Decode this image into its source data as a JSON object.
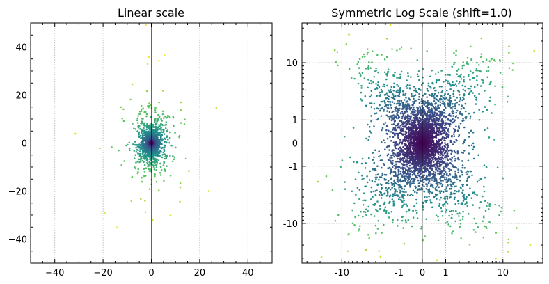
{
  "chart_data": [
    {
      "type": "scatter",
      "title": "Linear scale",
      "xlim": [
        -50,
        50
      ],
      "ylim": [
        -50,
        50
      ],
      "x_ticks": [
        -40,
        -20,
        0,
        20,
        40
      ],
      "y_ticks": [
        -40,
        -20,
        0,
        20,
        40
      ],
      "x_tick_labels": [
        "−40",
        "−20",
        "0",
        "20",
        "40"
      ],
      "y_tick_labels": [
        "−40",
        "−20",
        "0",
        "20",
        "40"
      ],
      "grid": true,
      "colormap": "viridis",
      "points_description_count": 5000
    },
    {
      "type": "scatter",
      "title": "Symmetric Log Scale (shift=1.0)",
      "xlim": [
        -35,
        35
      ],
      "ylim": [
        -35,
        35
      ],
      "x_ticks": [
        -10,
        -1,
        0,
        1,
        10
      ],
      "y_ticks": [
        -10,
        -1,
        0,
        1,
        10
      ],
      "x_tick_labels": [
        "-10",
        "-1",
        "0",
        "1",
        "10"
      ],
      "y_tick_labels": [
        "-10",
        "-1",
        "0",
        "1",
        "10"
      ],
      "grid": true,
      "colormap": "viridis",
      "scale": "symlog",
      "shift": 1.0
    }
  ],
  "colors": {
    "center": "#440154",
    "mid": "#21918c",
    "outer": "#5ec962",
    "far": "#fde725"
  }
}
